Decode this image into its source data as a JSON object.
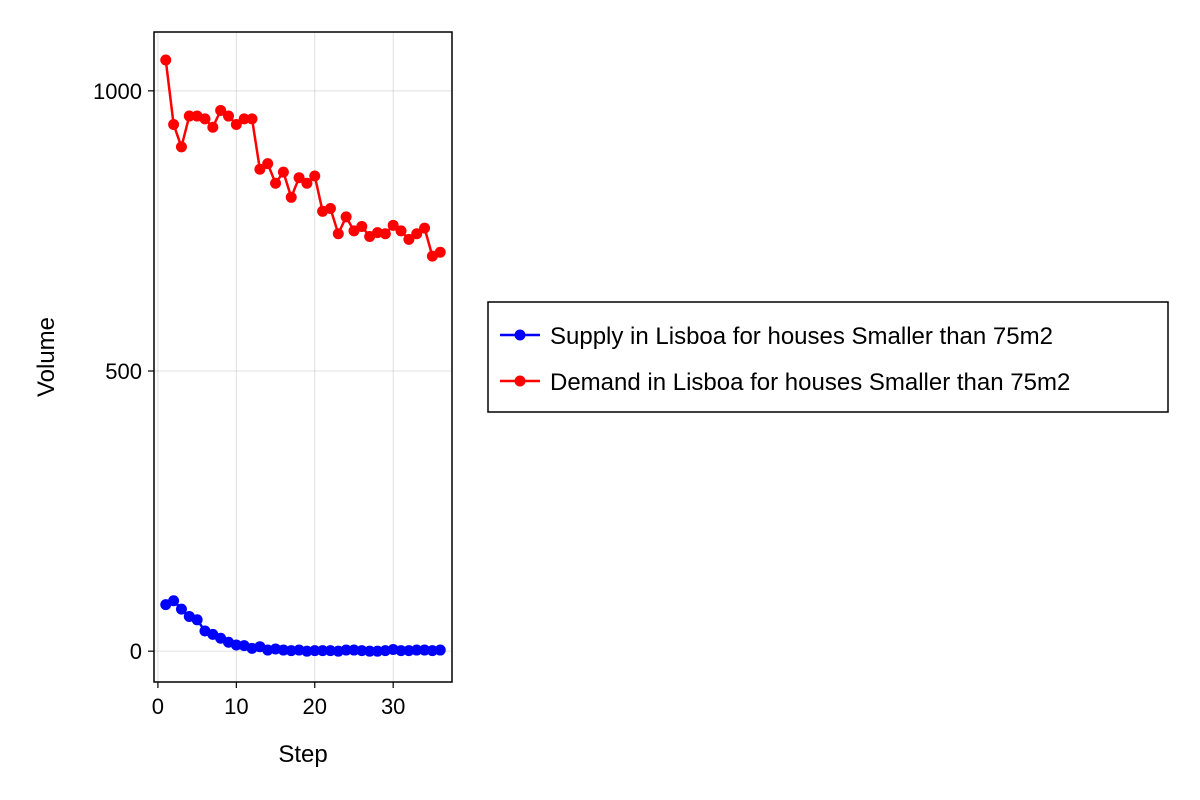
{
  "chart_data": {
    "type": "line",
    "xlabel": "Step",
    "ylabel": "Volume",
    "xlim": [
      -0.5,
      37.5
    ],
    "ylim": [
      -55,
      1105
    ],
    "xticks": [
      0,
      10,
      20,
      30
    ],
    "yticks": [
      0,
      500,
      1000
    ],
    "grid": true,
    "legend_position": "right",
    "x": [
      1,
      2,
      3,
      4,
      5,
      6,
      7,
      8,
      9,
      10,
      11,
      12,
      13,
      14,
      15,
      16,
      17,
      18,
      19,
      20,
      21,
      22,
      23,
      24,
      25,
      26,
      27,
      28,
      29,
      30,
      31,
      32,
      33,
      34,
      35,
      36
    ],
    "series": [
      {
        "name": "Supply in Lisboa for houses Smaller than 75m2",
        "color": "#0000ff",
        "values": [
          83,
          90,
          75,
          62,
          56,
          36,
          30,
          23,
          16,
          11,
          10,
          5,
          8,
          2,
          4,
          2,
          1,
          2,
          0,
          1,
          1,
          1,
          0,
          2,
          2,
          1,
          0,
          0,
          1,
          3,
          1,
          1,
          2,
          2,
          1,
          2
        ]
      },
      {
        "name": "Demand in Lisboa for houses Smaller than 75m2",
        "color": "#ff0000",
        "values": [
          1055,
          940,
          900,
          955,
          955,
          950,
          935,
          965,
          955,
          940,
          950,
          950,
          860,
          870,
          835,
          855,
          810,
          845,
          835,
          848,
          785,
          790,
          745,
          775,
          750,
          758,
          740,
          747,
          745,
          760,
          750,
          735,
          745,
          755,
          705,
          712
        ]
      }
    ]
  }
}
